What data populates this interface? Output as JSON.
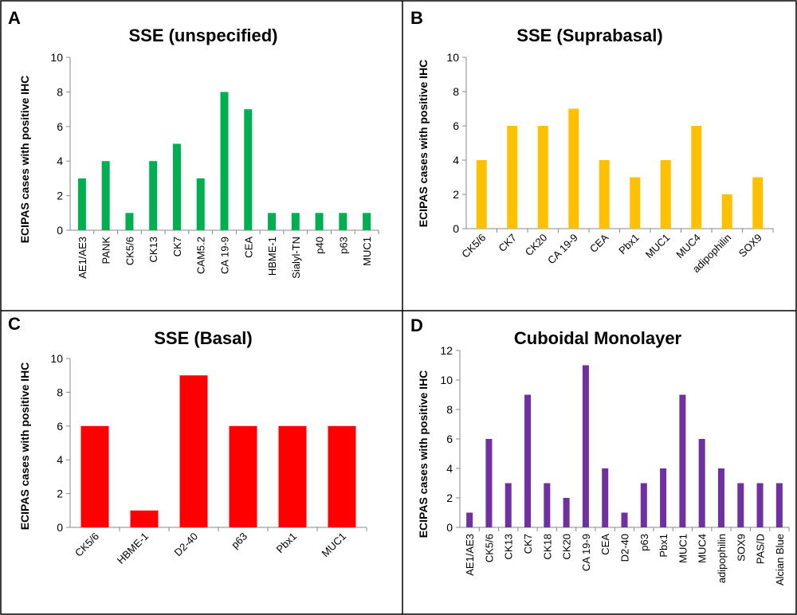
{
  "chart_data": [
    {
      "type": "bar",
      "panel_label": "A",
      "title": "SSE (unspecified)",
      "ylabel": "ECIPAS cases with positive IHC",
      "ylim": [
        0,
        10
      ],
      "yticks": [
        "0",
        "2",
        "4",
        "6",
        "8",
        "10"
      ],
      "categories": [
        "AE1/AE3",
        "PANK",
        "CK5/6",
        "CK13",
        "CK7",
        "CAM5.2",
        "CA 19-9",
        "CEA",
        "HBME-1",
        "Sialyl-TN",
        "p40",
        "p63",
        "MUC1"
      ],
      "values": [
        3,
        4,
        1,
        4,
        5,
        3,
        8,
        7,
        1,
        1,
        1,
        1,
        1
      ],
      "color": "#00b050",
      "grid": false
    },
    {
      "type": "bar",
      "panel_label": "B",
      "title": "SSE (Suprabasal)",
      "ylabel": "ECIPAS cases with positive IHC",
      "ylim": [
        0,
        10
      ],
      "yticks": [
        "0",
        "2",
        "4",
        "6",
        "8",
        "10"
      ],
      "categories": [
        "CK5/6",
        "CK7",
        "CK20",
        "CA 19-9",
        "CEA",
        "Pbx1",
        "MUC1",
        "MUC4",
        "adipophilin",
        "SOX9"
      ],
      "values": [
        4,
        6,
        6,
        7,
        4,
        3,
        4,
        6,
        2,
        3
      ],
      "color": "#ffc000",
      "grid": false
    },
    {
      "type": "bar",
      "panel_label": "C",
      "title": "SSE (Basal)",
      "ylabel": "ECIPAS cases with positive IHC",
      "ylim": [
        0,
        10
      ],
      "yticks": [
        "0",
        "2",
        "4",
        "6",
        "8",
        "10"
      ],
      "categories": [
        "CK5/6",
        "HBME-1",
        "D2-40",
        "p63",
        "Pbx1",
        "MUC1"
      ],
      "values": [
        6,
        1,
        9,
        6,
        6,
        6
      ],
      "color": "#ff0000",
      "grid": false
    },
    {
      "type": "bar",
      "panel_label": "D",
      "title": "Cuboidal Monolayer",
      "ylabel": "ECIPAS cases with positive IHC",
      "ylim": [
        0,
        12
      ],
      "yticks": [
        "0",
        "2",
        "4",
        "6",
        "8",
        "10",
        "12"
      ],
      "categories": [
        "AE1/AE3",
        "CK5/6",
        "CK13",
        "CK7",
        "CK18",
        "CK20",
        "CA 19-9",
        "CEA",
        "D2-40",
        "p63",
        "Pbx1",
        "MUC1",
        "MUC4",
        "adipophilin",
        "SOX9",
        "PAS/D",
        "Alcian Blue"
      ],
      "values": [
        1,
        6,
        3,
        9,
        3,
        2,
        11,
        4,
        1,
        3,
        4,
        9,
        6,
        4,
        3,
        3,
        3
      ],
      "color": "#7030a0",
      "grid": false
    }
  ]
}
